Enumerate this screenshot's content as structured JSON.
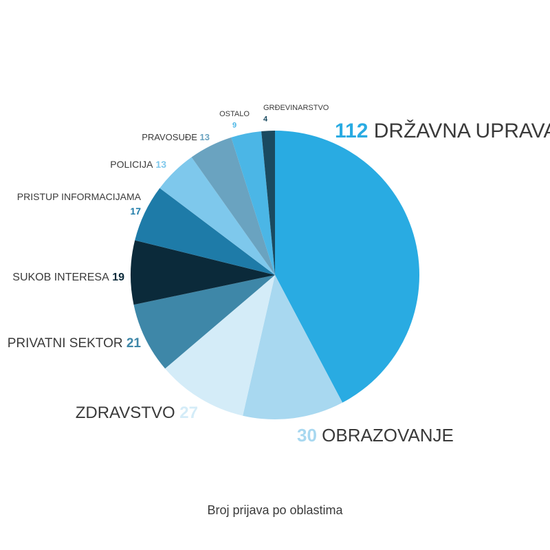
{
  "chart_data": {
    "type": "pie",
    "title": "Broj prijava po oblastima",
    "categories": [
      "DRŽAVNA UPRAVA",
      "OBRAZOVANJE",
      "ZDRAVSTVO",
      "PRIVATNI SEKTOR",
      "SUKOB INTERESA",
      "PRISTUP INFORMACIJAMA",
      "POLICIJA",
      "PRAVOSUĐE",
      "OSTALO",
      "GRĐEVINARSTVO"
    ],
    "values": [
      112,
      30,
      27,
      21,
      19,
      17,
      13,
      13,
      9,
      4
    ],
    "colors": [
      "#29abe2",
      "#a8d8f0",
      "#d4ecf8",
      "#3e87a8",
      "#0b2a3a",
      "#1e7ba8",
      "#7ec8ec",
      "#6aa3c0",
      "#4bb6e6",
      "#1a4a60"
    ]
  }
}
